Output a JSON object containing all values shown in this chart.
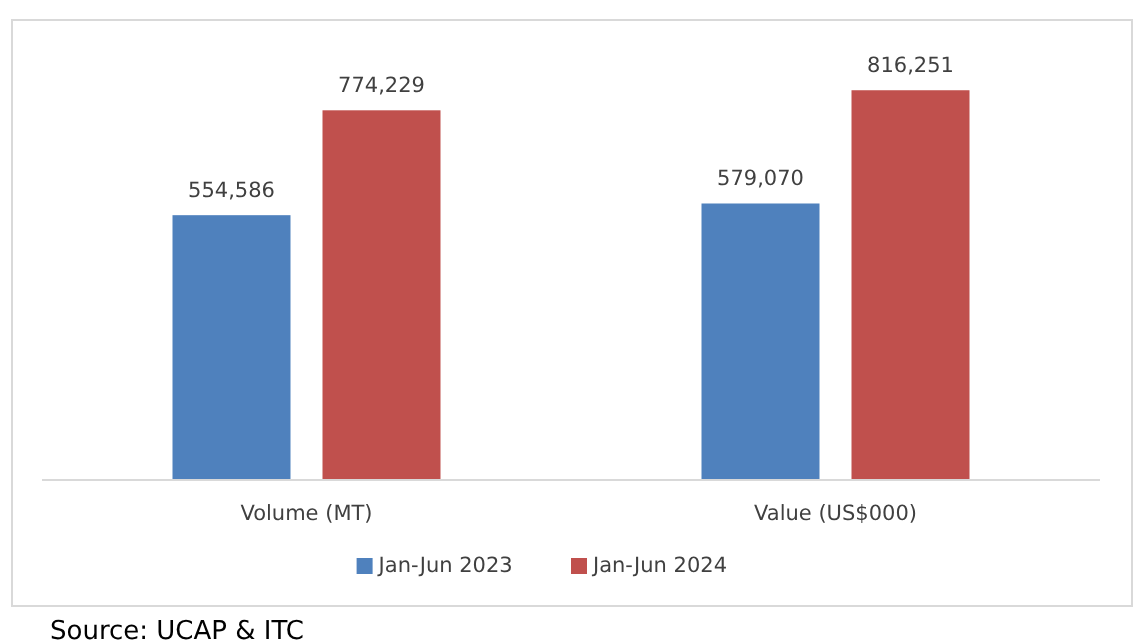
{
  "chart_data": {
    "type": "bar",
    "categories": [
      "Volume (MT)",
      "Value (US$000)"
    ],
    "series": [
      {
        "name": "Jan-Jun 2023",
        "color": "#4f81bd",
        "values": [
          554586,
          579070
        ],
        "value_labels": [
          "554,586",
          "579,070"
        ]
      },
      {
        "name": "Jan-Jun 2024",
        "color": "#c0504d",
        "values": [
          774229,
          816251
        ],
        "value_labels": [
          "774,229",
          "816,251"
        ]
      }
    ],
    "legend": "bottom",
    "annotations": [
      "Source: UCAP & ITC"
    ]
  }
}
